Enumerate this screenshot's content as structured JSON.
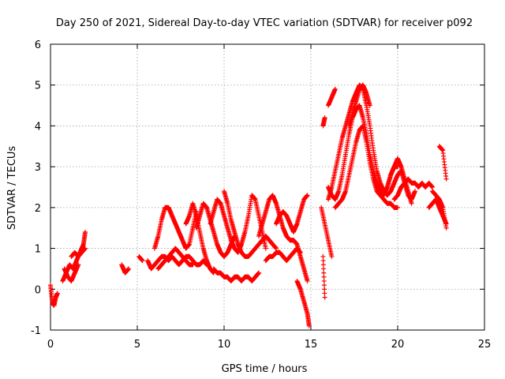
{
  "chart_data": {
    "type": "scatter",
    "title": "Day 250 of 2021, Sidereal Day-to-day VTEC variation (SDTVAR) for receiver p092",
    "xlabel": "GPS time / hours",
    "ylabel": "SDTVAR / TECUs",
    "xlim": [
      0,
      25
    ],
    "ylim": [
      -1,
      6
    ],
    "xticks": [
      0,
      5,
      10,
      15,
      20,
      25
    ],
    "yticks": [
      -1,
      0,
      1,
      2,
      3,
      4,
      5,
      6
    ],
    "xtick_labels": [
      "0",
      "5",
      "10",
      "15",
      "20",
      "25"
    ],
    "ytick_labels": [
      "-1",
      "0",
      "1",
      "2",
      "3",
      "4",
      "5",
      "6"
    ],
    "grid": true,
    "marker": "+",
    "color": "#ff0000",
    "series": [
      {
        "name": "t0",
        "x": [
          0.0,
          0.1,
          0.2,
          0.3,
          0.4
        ],
        "y": [
          0.1,
          -0.3,
          -0.4,
          -0.2,
          -0.1
        ]
      },
      {
        "name": "t1",
        "x": [
          0.7,
          0.9,
          1.1,
          1.3,
          1.5,
          1.7,
          1.9,
          2.0
        ],
        "y": [
          0.2,
          0.4,
          0.6,
          0.5,
          0.7,
          0.9,
          1.1,
          1.4
        ]
      },
      {
        "name": "t2",
        "x": [
          0.8,
          1.0,
          1.2,
          1.4,
          1.6
        ],
        "y": [
          0.5,
          0.3,
          0.2,
          0.4,
          0.6
        ]
      },
      {
        "name": "t3",
        "x": [
          1.2,
          1.4,
          1.6,
          1.8,
          2.0
        ],
        "y": [
          0.8,
          0.9,
          0.8,
          0.9,
          1.0
        ]
      },
      {
        "name": "t4",
        "x": [
          4.1,
          4.3,
          4.5
        ],
        "y": [
          0.6,
          0.4,
          0.5
        ]
      },
      {
        "name": "t5",
        "x": [
          5.1,
          5.3
        ],
        "y": [
          0.8,
          0.7
        ]
      },
      {
        "name": "t6",
        "x": [
          5.6,
          5.8,
          6.0,
          6.2,
          6.4,
          6.6,
          6.8,
          7.0,
          7.2,
          7.4,
          7.6,
          7.8,
          8.0,
          8.2,
          8.4,
          8.6,
          8.8,
          9.0
        ],
        "y": [
          0.7,
          0.5,
          0.6,
          0.7,
          0.8,
          0.8,
          0.7,
          0.8,
          0.7,
          0.6,
          0.7,
          0.8,
          0.8,
          0.7,
          0.6,
          0.6,
          0.7,
          0.6
        ]
      },
      {
        "name": "t7",
        "x": [
          6.0,
          6.2,
          6.4,
          6.6,
          6.8,
          7.0,
          7.2,
          7.4,
          7.6,
          7.8,
          8.0,
          8.2,
          8.4
        ],
        "y": [
          1.0,
          1.3,
          1.7,
          2.0,
          2.0,
          1.8,
          1.6,
          1.4,
          1.2,
          1.0,
          1.1,
          1.5,
          1.9
        ]
      },
      {
        "name": "t8",
        "x": [
          6.2,
          6.4,
          6.6,
          6.8,
          7.0,
          7.2,
          7.4,
          7.6,
          7.8,
          8.0,
          8.2
        ],
        "y": [
          0.5,
          0.6,
          0.7,
          0.8,
          0.9,
          1.0,
          0.9,
          0.8,
          0.7,
          0.6,
          0.6
        ]
      },
      {
        "name": "t9",
        "x": [
          7.8,
          8.0,
          8.2,
          8.4,
          8.6,
          8.8,
          9.0,
          9.2,
          9.4
        ],
        "y": [
          1.6,
          1.8,
          2.1,
          1.8,
          1.4,
          1.0,
          0.7,
          0.5,
          0.4
        ]
      },
      {
        "name": "t10",
        "x": [
          8.4,
          8.6,
          8.8,
          9.0,
          9.2,
          9.4,
          9.6,
          9.8,
          10.0,
          10.2,
          10.4,
          10.6
        ],
        "y": [
          1.5,
          1.8,
          2.1,
          2.0,
          1.7,
          1.4,
          1.1,
          0.9,
          0.8,
          0.9,
          1.1,
          1.3
        ]
      },
      {
        "name": "t11",
        "x": [
          9.2,
          9.4,
          9.6,
          9.8,
          10.0,
          10.2,
          10.4,
          10.6,
          10.8,
          11.0,
          11.2,
          11.4,
          11.6,
          11.8,
          12.0,
          12.2,
          12.4
        ],
        "y": [
          1.6,
          1.9,
          2.2,
          2.1,
          1.8,
          1.5,
          1.2,
          1.0,
          0.9,
          1.1,
          1.4,
          1.8,
          2.3,
          2.2,
          1.8,
          1.4,
          1.0
        ]
      },
      {
        "name": "t12",
        "x": [
          9.4,
          9.6,
          9.8,
          10.0,
          10.2,
          10.4,
          10.6,
          10.8,
          11.0,
          11.2,
          11.4,
          11.6,
          11.8,
          12.0
        ],
        "y": [
          0.5,
          0.4,
          0.4,
          0.3,
          0.3,
          0.2,
          0.3,
          0.3,
          0.2,
          0.3,
          0.3,
          0.2,
          0.3,
          0.4
        ]
      },
      {
        "name": "t13",
        "x": [
          10.0,
          10.2,
          10.4,
          10.6,
          10.8,
          11.0,
          11.2,
          11.4,
          11.6,
          11.8,
          12.0,
          12.2,
          12.4,
          12.6,
          12.8,
          13.0
        ],
        "y": [
          2.4,
          2.1,
          1.7,
          1.4,
          1.1,
          0.9,
          0.8,
          0.8,
          0.9,
          1.0,
          1.1,
          1.2,
          1.3,
          1.2,
          1.1,
          1.0
        ]
      },
      {
        "name": "t14",
        "x": [
          12.0,
          12.2,
          12.4,
          12.6,
          12.8,
          13.0,
          13.2,
          13.4,
          13.6,
          13.8,
          14.0
        ],
        "y": [
          1.3,
          1.6,
          1.9,
          2.2,
          2.3,
          2.1,
          1.8,
          1.5,
          1.3,
          1.2,
          1.2
        ]
      },
      {
        "name": "t15",
        "x": [
          12.4,
          12.6,
          12.8,
          13.0,
          13.2,
          13.4,
          13.6,
          13.8,
          14.0,
          14.2,
          14.4
        ],
        "y": [
          0.7,
          0.8,
          0.8,
          0.9,
          0.9,
          0.8,
          0.7,
          0.8,
          0.9,
          1.0,
          0.9
        ]
      },
      {
        "name": "t16",
        "x": [
          13.0,
          13.2,
          13.4,
          13.6,
          13.8,
          14.0,
          14.2,
          14.4,
          14.6,
          14.8
        ],
        "y": [
          1.6,
          1.8,
          1.9,
          1.8,
          1.6,
          1.4,
          1.6,
          1.9,
          2.2,
          2.3
        ]
      },
      {
        "name": "t17",
        "x": [
          14.0,
          14.2,
          14.4,
          14.6,
          14.8
        ],
        "y": [
          1.2,
          1.1,
          0.8,
          0.5,
          0.2
        ]
      },
      {
        "name": "t18",
        "x": [
          14.2,
          14.4,
          14.6,
          14.8,
          14.9
        ],
        "y": [
          0.2,
          0.0,
          -0.3,
          -0.6,
          -0.9
        ]
      },
      {
        "name": "t19",
        "x": [
          15.6,
          15.8,
          16.0,
          16.2
        ],
        "y": [
          2.0,
          1.6,
          1.2,
          0.8
        ]
      },
      {
        "name": "t20",
        "x": [
          15.7,
          15.8
        ],
        "y": [
          0.8,
          -0.2
        ]
      },
      {
        "name": "t21",
        "x": [
          15.7,
          15.8
        ],
        "y": [
          4.0,
          4.2
        ]
      },
      {
        "name": "t22",
        "x": [
          16.0,
          16.2,
          16.4,
          16.6,
          16.8,
          17.0,
          17.2,
          17.4,
          17.6,
          17.8,
          18.0,
          18.2,
          18.4,
          18.6,
          18.8,
          19.0,
          19.2,
          19.4,
          19.6,
          19.8,
          20.0
        ],
        "y": [
          2.5,
          2.3,
          2.2,
          2.4,
          2.8,
          3.3,
          3.8,
          4.2,
          4.4,
          4.5,
          4.2,
          3.8,
          3.3,
          2.9,
          2.6,
          2.4,
          2.3,
          2.5,
          2.8,
          3.0,
          3.0
        ]
      },
      {
        "name": "t23",
        "x": [
          16.0,
          16.2,
          16.4,
          16.6,
          16.8,
          17.0,
          17.2,
          17.4,
          17.6,
          17.8,
          18.0,
          18.2,
          18.4,
          18.6,
          18.8,
          19.0,
          19.2,
          19.4,
          19.6,
          19.8,
          20.0,
          20.2,
          20.4,
          20.6,
          20.8,
          21.0
        ],
        "y": [
          2.2,
          2.5,
          2.9,
          3.3,
          3.7,
          4.0,
          4.3,
          4.6,
          4.8,
          5.0,
          4.9,
          4.5,
          4.0,
          3.4,
          2.9,
          2.6,
          2.4,
          2.3,
          2.4,
          2.6,
          2.8,
          2.9,
          2.6,
          2.3,
          2.2,
          2.4
        ]
      },
      {
        "name": "t24",
        "x": [
          16.0,
          16.2,
          16.4
        ],
        "y": [
          4.5,
          4.7,
          4.9
        ]
      },
      {
        "name": "t25",
        "x": [
          16.4,
          16.6,
          16.8,
          17.0,
          17.2,
          17.4,
          17.6,
          17.8,
          18.0,
          18.2,
          18.4,
          18.6,
          18.8,
          19.0,
          19.2,
          19.4,
          19.6,
          19.8,
          20.0
        ],
        "y": [
          2.0,
          2.1,
          2.2,
          2.4,
          2.8,
          3.2,
          3.6,
          3.9,
          4.0,
          3.6,
          3.1,
          2.7,
          2.4,
          2.3,
          2.2,
          2.1,
          2.1,
          2.0,
          2.0
        ]
      },
      {
        "name": "t26",
        "x": [
          17.2,
          17.4,
          17.6,
          17.8,
          18.0,
          18.2,
          18.4
        ],
        "y": [
          4.0,
          4.3,
          4.6,
          4.9,
          5.0,
          4.8,
          4.5
        ]
      },
      {
        "name": "t27",
        "x": [
          19.8,
          20.0,
          20.2,
          20.4,
          20.6,
          20.8,
          21.0,
          21.2,
          21.4,
          21.6,
          21.8,
          22.0
        ],
        "y": [
          2.2,
          2.3,
          2.5,
          2.6,
          2.7,
          2.6,
          2.6,
          2.5,
          2.6,
          2.5,
          2.6,
          2.5
        ]
      },
      {
        "name": "t28",
        "x": [
          19.2,
          19.4,
          19.6,
          19.8,
          20.0,
          20.2,
          20.4,
          20.6,
          20.8
        ],
        "y": [
          2.3,
          2.5,
          2.8,
          3.0,
          3.2,
          3.0,
          2.7,
          2.4,
          2.1
        ]
      },
      {
        "name": "t29",
        "x": [
          21.8,
          22.0,
          22.2,
          22.4,
          22.6,
          22.8
        ],
        "y": [
          2.0,
          2.1,
          2.2,
          2.0,
          1.8,
          1.6
        ]
      },
      {
        "name": "t30",
        "x": [
          22.4,
          22.6,
          22.8
        ],
        "y": [
          3.5,
          3.4,
          2.7
        ]
      },
      {
        "name": "t31",
        "x": [
          22.0,
          22.2,
          22.4,
          22.6,
          22.8
        ],
        "y": [
          2.4,
          2.3,
          2.2,
          2.0,
          1.5
        ]
      }
    ]
  }
}
